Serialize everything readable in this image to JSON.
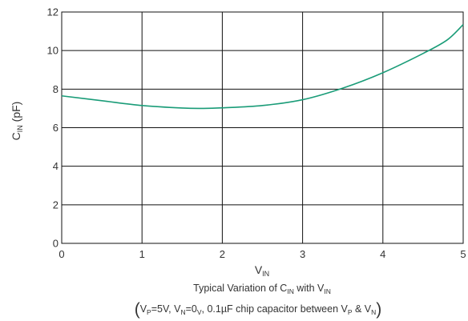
{
  "chart_data": {
    "type": "line",
    "x_label_main": "V",
    "x_label_sub": "IN",
    "y_label_main": "C",
    "y_label_sub": "IN",
    "y_label_unit": " (pF)",
    "xlim": [
      0,
      5
    ],
    "ylim": [
      0,
      12
    ],
    "x_ticks": [
      "0",
      "1",
      "2",
      "3",
      "4",
      "5"
    ],
    "y_ticks": [
      "0",
      "2",
      "4",
      "6",
      "8",
      "10",
      "12"
    ],
    "grid": true,
    "series": [
      {
        "color": "#1a9c78",
        "x": [
          0,
          0.5,
          1.0,
          1.5,
          1.75,
          2.0,
          2.5,
          3.0,
          3.5,
          4.0,
          4.5,
          4.8,
          5.0
        ],
        "y": [
          7.65,
          7.4,
          7.15,
          7.02,
          7.0,
          7.03,
          7.15,
          7.45,
          8.05,
          8.85,
          9.85,
          10.55,
          11.35
        ]
      }
    ]
  },
  "caption": {
    "line1": {
      "prefix": "Typical Variation of C",
      "sub1": "IN",
      "mid": " with V",
      "sub2": "IN"
    },
    "line2": {
      "open": "(",
      "t1": "V",
      "s1": "P",
      "t2": "=5V, V",
      "s2": "N",
      "t3": "=0",
      "s3": "V",
      "t4": ", 0.1µF chip capacitor between V",
      "s4": "P",
      "t5": " & V",
      "s5": "N",
      "close": ")"
    }
  }
}
